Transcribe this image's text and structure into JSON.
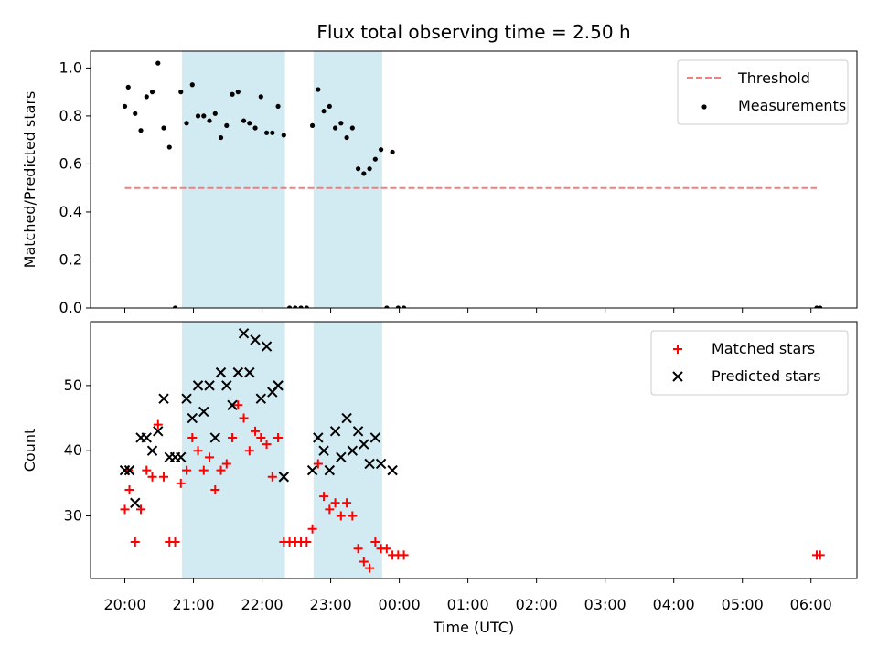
{
  "chart_data": {
    "title": "Flux total observing time = 2.50 h",
    "colors": {
      "threshold": "#f08080",
      "measurement": "#000000",
      "matched": "#ff0000",
      "predicted": "#000000",
      "highlight": "#add8e6"
    },
    "x_axis": {
      "label": "Time (UTC)",
      "unit": "hours since 20:00 UTC on the plotted night",
      "range": [
        -0.5,
        10.67
      ],
      "ticks": [
        {
          "v": 0,
          "label": "20:00"
        },
        {
          "v": 1,
          "label": "21:00"
        },
        {
          "v": 2,
          "label": "22:00"
        },
        {
          "v": 3,
          "label": "23:00"
        },
        {
          "v": 4,
          "label": "00:00"
        },
        {
          "v": 5,
          "label": "01:00"
        },
        {
          "v": 6,
          "label": "02:00"
        },
        {
          "v": 7,
          "label": "03:00"
        },
        {
          "v": 8,
          "label": "04:00"
        },
        {
          "v": 9,
          "label": "05:00"
        },
        {
          "v": 10,
          "label": "06:00"
        }
      ]
    },
    "highlight_spans": [
      {
        "start": "20:50",
        "end": "22:20"
      },
      {
        "start": "22:45",
        "end": "23:45"
      }
    ],
    "panels": [
      {
        "id": "ratio",
        "type": "scatter",
        "ylabel": "Matched/Predicted stars",
        "ylim": [
          0,
          1.07
        ],
        "yticks": [
          "0.0",
          "0.2",
          "0.4",
          "0.6",
          "0.8",
          "1.0"
        ],
        "legend": {
          "position": "top-right",
          "items": [
            {
              "label": "Threshold",
              "style": "dashed-line",
              "series": "threshold"
            },
            {
              "label": "Measurements",
              "style": "dot",
              "series": "measurement"
            }
          ]
        },
        "threshold": {
          "value": 0.5,
          "x_start": "20:00",
          "x_end": "06:05"
        },
        "measurements": [
          [
            "20:00",
            0.84
          ],
          [
            "20:03",
            0.92
          ],
          [
            "20:09",
            0.81
          ],
          [
            "20:14",
            0.74
          ],
          [
            "20:19",
            0.88
          ],
          [
            "20:24",
            0.9
          ],
          [
            "20:29",
            1.02
          ],
          [
            "20:34",
            0.75
          ],
          [
            "20:39",
            0.67
          ],
          [
            "20:44",
            0.0
          ],
          [
            "20:49",
            0.9
          ],
          [
            "20:54",
            0.77
          ],
          [
            "20:59",
            0.93
          ],
          [
            "21:04",
            0.8
          ],
          [
            "21:09",
            0.8
          ],
          [
            "21:14",
            0.78
          ],
          [
            "21:19",
            0.81
          ],
          [
            "21:24",
            0.71
          ],
          [
            "21:29",
            0.76
          ],
          [
            "21:34",
            0.89
          ],
          [
            "21:39",
            0.9
          ],
          [
            "21:44",
            0.78
          ],
          [
            "21:49",
            0.77
          ],
          [
            "21:54",
            0.75
          ],
          [
            "21:59",
            0.88
          ],
          [
            "22:04",
            0.73
          ],
          [
            "22:09",
            0.73
          ],
          [
            "22:14",
            0.84
          ],
          [
            "22:19",
            0.72
          ],
          [
            "22:24",
            0.0
          ],
          [
            "22:29",
            0.0
          ],
          [
            "22:34",
            0.0
          ],
          [
            "22:39",
            0.0
          ],
          [
            "22:44",
            0.76
          ],
          [
            "22:49",
            0.91
          ],
          [
            "22:54",
            0.82
          ],
          [
            "22:59",
            0.84
          ],
          [
            "23:04",
            0.75
          ],
          [
            "23:09",
            0.77
          ],
          [
            "23:14",
            0.71
          ],
          [
            "23:19",
            0.75
          ],
          [
            "23:24",
            0.58
          ],
          [
            "23:29",
            0.56
          ],
          [
            "23:34",
            0.58
          ],
          [
            "23:39",
            0.62
          ],
          [
            "23:44",
            0.66
          ],
          [
            "23:49",
            0.0
          ],
          [
            "23:54",
            0.65
          ],
          [
            "23:59",
            0.0
          ],
          [
            "00:04",
            0.0
          ],
          [
            "06:05",
            0.0
          ],
          [
            "06:08",
            0.0
          ]
        ]
      },
      {
        "id": "count",
        "type": "scatter",
        "ylabel": "Count",
        "ylim": [
          20.4,
          59.8
        ],
        "yticks": [
          "30",
          "40",
          "50"
        ],
        "legend": {
          "position": "top-right",
          "items": [
            {
              "label": "Matched stars",
              "style": "plus",
              "series": "matched"
            },
            {
              "label": "Predicted stars",
              "style": "cross",
              "series": "predicted"
            }
          ]
        },
        "matched": [
          [
            "20:00",
            31
          ],
          [
            "20:03",
            37
          ],
          [
            "20:04",
            34
          ],
          [
            "20:09",
            26
          ],
          [
            "20:14",
            31
          ],
          [
            "20:19",
            37
          ],
          [
            "20:24",
            36
          ],
          [
            "20:29",
            44
          ],
          [
            "20:34",
            36
          ],
          [
            "20:39",
            26
          ],
          [
            "20:44",
            26
          ],
          [
            "20:49",
            35
          ],
          [
            "20:54",
            37
          ],
          [
            "20:59",
            42
          ],
          [
            "21:04",
            40
          ],
          [
            "21:09",
            37
          ],
          [
            "21:14",
            39
          ],
          [
            "21:19",
            34
          ],
          [
            "21:24",
            37
          ],
          [
            "21:29",
            38
          ],
          [
            "21:34",
            42
          ],
          [
            "21:39",
            47
          ],
          [
            "21:44",
            45
          ],
          [
            "21:49",
            40
          ],
          [
            "21:54",
            43
          ],
          [
            "21:59",
            42
          ],
          [
            "22:04",
            41
          ],
          [
            "22:09",
            36
          ],
          [
            "22:14",
            42
          ],
          [
            "22:19",
            26
          ],
          [
            "22:24",
            26
          ],
          [
            "22:29",
            26
          ],
          [
            "22:34",
            26
          ],
          [
            "22:39",
            26
          ],
          [
            "22:44",
            28
          ],
          [
            "22:49",
            38
          ],
          [
            "22:54",
            33
          ],
          [
            "22:59",
            31
          ],
          [
            "23:04",
            32
          ],
          [
            "23:09",
            30
          ],
          [
            "23:14",
            32
          ],
          [
            "23:19",
            30
          ],
          [
            "23:24",
            25
          ],
          [
            "23:29",
            23
          ],
          [
            "23:34",
            22
          ],
          [
            "23:39",
            26
          ],
          [
            "23:44",
            25
          ],
          [
            "23:49",
            25
          ],
          [
            "23:54",
            24
          ],
          [
            "23:59",
            24
          ],
          [
            "00:04",
            24
          ],
          [
            "06:05",
            24
          ],
          [
            "06:08",
            24
          ]
        ],
        "predicted": [
          [
            "20:00",
            37
          ],
          [
            "20:04",
            37
          ],
          [
            "20:09",
            32
          ],
          [
            "20:14",
            42
          ],
          [
            "20:19",
            42
          ],
          [
            "20:24",
            40
          ],
          [
            "20:29",
            43
          ],
          [
            "20:34",
            48
          ],
          [
            "20:39",
            39
          ],
          [
            "20:44",
            39
          ],
          [
            "20:49",
            39
          ],
          [
            "20:54",
            48
          ],
          [
            "20:59",
            45
          ],
          [
            "21:04",
            50
          ],
          [
            "21:09",
            46
          ],
          [
            "21:14",
            50
          ],
          [
            "21:19",
            42
          ],
          [
            "21:24",
            52
          ],
          [
            "21:29",
            50
          ],
          [
            "21:34",
            47
          ],
          [
            "21:39",
            52
          ],
          [
            "21:44",
            58
          ],
          [
            "21:49",
            52
          ],
          [
            "21:54",
            57
          ],
          [
            "21:59",
            48
          ],
          [
            "22:04",
            56
          ],
          [
            "22:09",
            49
          ],
          [
            "22:14",
            50
          ],
          [
            "22:19",
            36
          ],
          [
            "22:44",
            37
          ],
          [
            "22:49",
            42
          ],
          [
            "22:54",
            40
          ],
          [
            "22:59",
            37
          ],
          [
            "23:04",
            43
          ],
          [
            "23:09",
            39
          ],
          [
            "23:14",
            45
          ],
          [
            "23:19",
            40
          ],
          [
            "23:24",
            43
          ],
          [
            "23:29",
            41
          ],
          [
            "23:34",
            38
          ],
          [
            "23:39",
            42
          ],
          [
            "23:44",
            38
          ],
          [
            "23:54",
            37
          ]
        ]
      }
    ]
  }
}
